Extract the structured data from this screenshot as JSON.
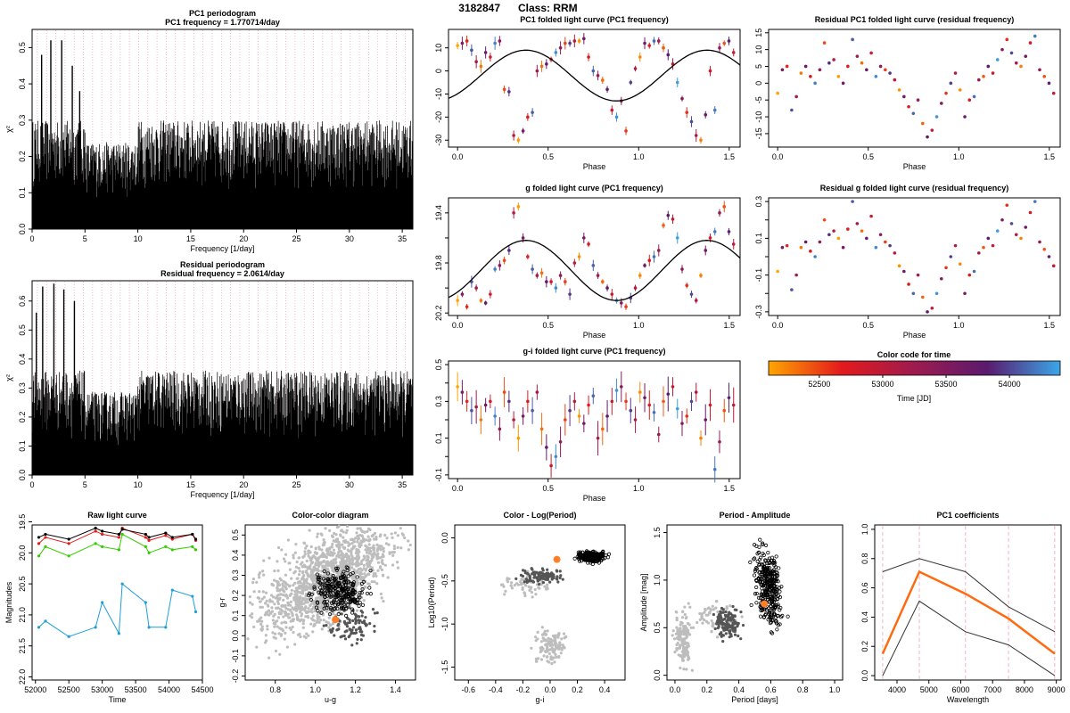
{
  "header": {
    "object_id": "3182847",
    "class_label": "Class: RRM"
  },
  "colors": {
    "axis": "#000000",
    "grid_pink": "#f0a0b0",
    "orange_point": "#ff7f2a",
    "grey_light": "#bdbdbd",
    "grey_dark": "#555555",
    "time_scale": [
      "#ffa500",
      "#e31a1c",
      "#9e1b4f",
      "#5a1a6e",
      "#3aa7e8"
    ]
  },
  "chart_data": [
    {
      "id": "pc1_periodogram",
      "type": "line",
      "title": "PC1 periodogram",
      "subtitle": "PC1 frequency = 1.770714/day",
      "xlabel": "Frequency [1/day]",
      "ylabel": "χ²",
      "xlim": [
        0,
        36
      ],
      "ylim": [
        0,
        0.55
      ],
      "xticks": [
        0,
        5,
        10,
        15,
        20,
        25,
        30,
        35
      ],
      "yticks": [
        0,
        0.1,
        0.2,
        0.3,
        0.4,
        0.5
      ],
      "ytick_labels": [
        "0.0",
        "0.1",
        "0.2",
        "0.3",
        "0.4",
        "0.5"
      ],
      "peak_frequencies": [
        0.9,
        1.77,
        2.8,
        3.8,
        4.5
      ],
      "peak_values": [
        0.48,
        0.52,
        0.52,
        0.45,
        0.38
      ],
      "baseline_max": 0.3
    },
    {
      "id": "residual_periodogram",
      "type": "line",
      "title": "Residual periodogram",
      "subtitle": "Residual frequency = 2.0614/day",
      "xlabel": "Frequency [1/day]",
      "ylabel": "χ²",
      "xlim": [
        0,
        36
      ],
      "ylim": [
        0,
        0.67
      ],
      "xticks": [
        0,
        5,
        10,
        15,
        20,
        25,
        30,
        35
      ],
      "yticks": [
        0,
        0.1,
        0.2,
        0.3,
        0.4,
        0.5,
        0.6
      ],
      "ytick_labels": [
        "0.0",
        "0.1",
        "0.2",
        "0.3",
        "0.4",
        "0.5",
        "0.6"
      ],
      "peak_frequencies": [
        0.4,
        1.0,
        2.06,
        3.0,
        4.0
      ],
      "peak_values": [
        0.56,
        0.65,
        0.66,
        0.64,
        0.6
      ],
      "baseline_max": 0.36
    },
    {
      "id": "pc1_folded",
      "type": "scatter",
      "title": "PC1 folded light curve (PC1 frequency)",
      "xlabel": "Phase",
      "ylabel": "",
      "xlim": [
        -0.05,
        1.56
      ],
      "ylim": [
        -33,
        18
      ],
      "xticks": [
        0,
        0.5,
        1.0,
        1.5
      ],
      "xtick_labels": [
        "0.0",
        "0.5",
        "1.0",
        "1.5"
      ],
      "yticks": [
        -30,
        -20,
        -10,
        0,
        10
      ],
      "ytick_labels": [
        "-30",
        "-20",
        "-10",
        "0",
        "10"
      ],
      "fit": {
        "mean": -2,
        "amplitude": 11,
        "phase_offset": 1.0,
        "yinvert": false
      },
      "points_y": [
        11,
        12,
        13,
        9,
        4,
        2,
        8,
        6,
        12,
        13,
        -8,
        -9,
        -28,
        -30,
        -26,
        -20,
        -18,
        0,
        2,
        3,
        5,
        8,
        10,
        12,
        12,
        13,
        13,
        14,
        6,
        0,
        -2,
        -4,
        -8,
        -17,
        -20,
        -13,
        -26,
        -5,
        1,
        6,
        12,
        11,
        13,
        13,
        10,
        7,
        3,
        -5,
        -12,
        -18,
        -22,
        -28,
        -30,
        -19,
        0,
        -17,
        10,
        12,
        13,
        8
      ]
    },
    {
      "id": "residual_pc1_folded",
      "type": "scatter",
      "title": "Residual PC1 folded light curve (residual frequency)",
      "xlabel": "Phase",
      "ylabel": "",
      "xlim": [
        -0.05,
        1.56
      ],
      "ylim": [
        -19,
        16
      ],
      "xticks": [
        0,
        0.5,
        1.0,
        1.5
      ],
      "xtick_labels": [
        "0.0",
        "0.5",
        "1.0",
        "1.5"
      ],
      "yticks": [
        -15,
        -10,
        -5,
        0,
        5,
        10,
        15
      ],
      "ytick_labels": [
        "-15",
        "-10",
        "-5",
        "0",
        "5",
        "10",
        "15"
      ],
      "points_y": [
        -3,
        4,
        5,
        -8,
        -4,
        3,
        5,
        2,
        0,
        4,
        12,
        6,
        7,
        2,
        0,
        5,
        13,
        8,
        6,
        4,
        9,
        2,
        5,
        4,
        3,
        1,
        -2,
        -4,
        -7,
        -9,
        -5,
        -12,
        -16,
        -14,
        -10,
        -6,
        -3,
        0,
        3,
        -2,
        -10,
        -5,
        -4,
        1,
        2,
        5,
        3,
        7,
        10,
        13,
        9,
        6,
        5,
        8,
        12,
        14,
        4,
        2,
        0,
        -3
      ]
    },
    {
      "id": "g_folded",
      "type": "scatter",
      "title": "g folded light curve (PC1 frequency)",
      "xlabel": "Phase",
      "ylabel": "",
      "xlim": [
        -0.05,
        1.56
      ],
      "ylim": [
        20.22,
        19.28
      ],
      "xticks": [
        0,
        0.5,
        1.0,
        1.5
      ],
      "xtick_labels": [
        "0.0",
        "0.5",
        "1.0",
        "1.5"
      ],
      "yticks": [
        19.4,
        19.6,
        19.8,
        20.0,
        20.2
      ],
      "ytick_labels": [
        "19.4",
        "",
        "19.8",
        "",
        "20.2"
      ],
      "fit": {
        "mean": 19.86,
        "amplitude": 0.24,
        "phase_offset": 0.0,
        "yinvert": true
      },
      "points_y": [
        20.1,
        20.05,
        20.15,
        19.95,
        20.0,
        20.1,
        20.12,
        20.05,
        19.85,
        19.82,
        19.78,
        19.7,
        19.4,
        19.35,
        19.6,
        19.75,
        19.85,
        19.9,
        19.88,
        19.95,
        19.95,
        20.0,
        19.9,
        19.95,
        20.05,
        19.8,
        19.75,
        19.6,
        19.65,
        19.82,
        19.9,
        19.95,
        20.0,
        20.05,
        20.1,
        20.12,
        20.15,
        20.08,
        20.0,
        19.9,
        19.82,
        19.78,
        19.75,
        19.7,
        19.5,
        19.42,
        19.45,
        19.6,
        19.85,
        19.98,
        20.05,
        20.1,
        19.9,
        19.7,
        19.6,
        19.55,
        19.4,
        19.35,
        19.55,
        19.65
      ]
    },
    {
      "id": "residual_g_folded",
      "type": "scatter",
      "title": "Residual g folded light curve (residual frequency)",
      "xlabel": "Phase",
      "ylabel": "",
      "xlim": [
        -0.05,
        1.56
      ],
      "ylim": [
        -0.32,
        0.32
      ],
      "xticks": [
        0,
        0.5,
        1.0,
        1.5
      ],
      "xtick_labels": [
        "0.0",
        "0.5",
        "1.0",
        "1.5"
      ],
      "yticks": [
        -0.3,
        -0.2,
        -0.1,
        0,
        0.1,
        0.2,
        0.3
      ],
      "ytick_labels": [
        "-0.3",
        "",
        "-0.1",
        "",
        "0.1",
        "",
        "0.3"
      ],
      "points_y": [
        -0.08,
        0.05,
        0.06,
        -0.18,
        -0.1,
        0.05,
        0.08,
        0.03,
        0.0,
        0.08,
        0.2,
        0.12,
        0.14,
        0.1,
        0.05,
        0.15,
        0.3,
        0.18,
        0.14,
        0.1,
        0.22,
        0.05,
        0.12,
        0.08,
        0.06,
        0.02,
        -0.05,
        -0.08,
        -0.15,
        -0.2,
        -0.1,
        -0.22,
        -0.3,
        -0.28,
        -0.2,
        -0.12,
        -0.06,
        0.0,
        0.06,
        -0.04,
        -0.2,
        -0.1,
        -0.08,
        0.02,
        0.05,
        0.1,
        0.06,
        0.14,
        0.2,
        0.28,
        0.18,
        0.12,
        0.1,
        0.16,
        0.24,
        0.3,
        0.08,
        0.04,
        0.0,
        -0.05
      ]
    },
    {
      "id": "gi_folded",
      "type": "scatter",
      "title": "g-i folded light curve (PC1 frequency)",
      "xlabel": "Phase",
      "ylabel": "",
      "xlim": [
        -0.05,
        1.56
      ],
      "ylim": [
        -0.12,
        0.52
      ],
      "xticks": [
        0,
        0.5,
        1.0,
        1.5
      ],
      "xtick_labels": [
        "0.0",
        "0.5",
        "1.0",
        "1.5"
      ],
      "yticks": [
        -0.1,
        0,
        0.1,
        0.2,
        0.3,
        0.4,
        0.5
      ],
      "ytick_labels": [
        "-0.1",
        "",
        "0.1",
        "",
        "0.3",
        "",
        "0.5"
      ],
      "points_y": [
        0.38,
        0.35,
        0.3,
        0.25,
        0.27,
        0.2,
        0.28,
        0.3,
        0.22,
        0.15,
        0.35,
        0.3,
        0.2,
        0.1,
        0.22,
        0.3,
        0.25,
        0.35,
        0.15,
        0.05,
        -0.05,
        0.0,
        0.08,
        0.2,
        0.25,
        0.3,
        0.22,
        0.18,
        0.28,
        0.33,
        0.1,
        0.15,
        0.22,
        0.3,
        0.36,
        0.38,
        0.3,
        0.25,
        0.2,
        0.35,
        0.32,
        0.28,
        0.24,
        0.12,
        0.3,
        0.34,
        0.38,
        0.26,
        0.18,
        0.22,
        0.3,
        0.35,
        0.1,
        0.2,
        0.28,
        -0.07,
        0.08,
        0.25,
        0.32,
        0.28
      ]
    },
    {
      "id": "raw_light_curve",
      "type": "line",
      "title": "Raw light curve",
      "xlabel": "Time",
      "ylabel": "Magnitudes",
      "xlim": [
        51950,
        54500
      ],
      "ylim": [
        22.05,
        19.55
      ],
      "xticks": [
        52000,
        52500,
        53000,
        53500,
        54000,
        54500
      ],
      "xtick_labels": [
        "52000",
        "52500",
        "53000",
        "53500",
        "54000",
        "54500"
      ],
      "yticks": [
        19.5,
        20.0,
        20.5,
        21.0,
        21.5,
        22.0
      ],
      "ytick_labels": [
        "19.5",
        "20.0",
        "20.5",
        "21.0",
        "21.5",
        "22.0"
      ],
      "x": [
        52050,
        52150,
        52500,
        52900,
        53000,
        53250,
        53300,
        53650,
        53700,
        53950,
        54050,
        54350,
        54400
      ],
      "series": [
        {
          "color": "#1f9ed9",
          "values": [
            21.2,
            21.1,
            21.35,
            21.2,
            20.8,
            21.3,
            20.5,
            20.8,
            21.2,
            21.2,
            20.6,
            20.7,
            20.95
          ]
        },
        {
          "color": "#33cc00",
          "values": [
            20.05,
            19.9,
            20.05,
            19.85,
            19.9,
            19.95,
            19.7,
            19.9,
            20.0,
            19.9,
            19.95,
            19.9,
            19.95
          ]
        },
        {
          "color": "#e31a1c",
          "values": [
            19.85,
            19.75,
            19.85,
            19.65,
            19.7,
            19.75,
            19.6,
            19.75,
            19.8,
            19.72,
            19.78,
            19.7,
            19.8
          ]
        },
        {
          "color": "#000000",
          "values": [
            19.75,
            19.7,
            19.78,
            19.6,
            19.65,
            19.7,
            19.62,
            19.7,
            19.75,
            19.68,
            19.75,
            19.7,
            19.78
          ]
        }
      ]
    },
    {
      "id": "color_color",
      "type": "scatter",
      "title": "Color-color diagram",
      "xlabel": "u-g",
      "ylabel": "g-r",
      "xlim": [
        0.65,
        1.5
      ],
      "ylim": [
        -0.22,
        0.55
      ],
      "xticks": [
        0.8,
        1.0,
        1.2,
        1.4
      ],
      "xtick_labels": [
        "0.8",
        "1.0",
        "1.2",
        "1.4"
      ],
      "yticks": [
        -0.2,
        -0.1,
        0,
        0.1,
        0.2,
        0.3,
        0.4,
        0.5
      ],
      "ytick_labels": [
        "-0.2",
        "-0.1",
        "0.0",
        "0.1",
        "0.2",
        "0.3",
        "0.4",
        "0.5"
      ],
      "highlight": [
        1.1,
        0.08
      ]
    },
    {
      "id": "color_logperiod",
      "type": "scatter",
      "title": "Color - Log(Period)",
      "xlabel": "g-i",
      "ylabel": "Log10(Period)",
      "xlim": [
        -0.7,
        0.55
      ],
      "ylim": [
        -1.65,
        0.15
      ],
      "xticks": [
        -0.6,
        -0.4,
        -0.2,
        0,
        0.2,
        0.4
      ],
      "xtick_labels": [
        "-0.6",
        "-0.4",
        "-0.2",
        "0.0",
        "0.2",
        "0.4"
      ],
      "yticks": [
        -1.5,
        -1.0,
        -0.5,
        0
      ],
      "ytick_labels": [
        "-1.5",
        "-1.0",
        "-0.5",
        "0.0"
      ],
      "highlight": [
        0.05,
        -0.25
      ]
    },
    {
      "id": "period_amplitude",
      "type": "scatter",
      "title": "Period - Amplitude",
      "xlabel": "Period [days]",
      "ylabel": "Amplitude [mag]",
      "xlim": [
        -0.05,
        1.05
      ],
      "ylim": [
        -0.05,
        1.58
      ],
      "xticks": [
        0,
        0.2,
        0.4,
        0.6,
        0.8,
        1.0
      ],
      "xtick_labels": [
        "0.0",
        "0.2",
        "0.4",
        "0.6",
        "0.8",
        "1.0"
      ],
      "yticks": [
        0,
        0.5,
        1.0,
        1.5
      ],
      "ytick_labels": [
        "0.0",
        "0.5",
        "1.0",
        "1.5"
      ],
      "highlight": [
        0.56,
        0.75
      ]
    },
    {
      "id": "pc1_coefficients",
      "type": "line",
      "title": "PC1 coefficients",
      "xlabel": "Wavelength",
      "ylabel": "",
      "xlim": [
        3300,
        9150
      ],
      "ylim": [
        -0.03,
        1.03
      ],
      "xticks": [
        4000,
        5000,
        6000,
        7000,
        8000,
        9000
      ],
      "xtick_labels": [
        "4000",
        "5000",
        "6000",
        "7000",
        "8000",
        "9000"
      ],
      "yticks": [
        0,
        0.2,
        0.4,
        0.6,
        0.8,
        1.0
      ],
      "ytick_labels": [
        "0.0",
        "0.2",
        "0.4",
        "0.6",
        "0.8",
        "1.0"
      ],
      "x": [
        3550,
        4700,
        6150,
        7500,
        8950
      ],
      "vlines": [
        3550,
        4700,
        6150,
        7500,
        8950
      ],
      "series": [
        {
          "role": "upper",
          "color": "#333333",
          "values": [
            0.71,
            0.8,
            0.71,
            0.47,
            0.3
          ]
        },
        {
          "role": "main",
          "color": "#ff6a10",
          "values": [
            0.15,
            0.71,
            0.56,
            0.39,
            0.15
          ]
        },
        {
          "role": "lower",
          "color": "#333333",
          "values": [
            0.0,
            0.51,
            0.3,
            0.21,
            0.0
          ]
        }
      ]
    }
  ],
  "colorbar": {
    "title": "Color code for time",
    "xlabel": "Time [JD]",
    "tick_labels": [
      "52500",
      "53000",
      "53500",
      "54000"
    ],
    "range": [
      52100,
      54400
    ],
    "ticks": [
      52500,
      53000,
      53500,
      54000
    ]
  }
}
